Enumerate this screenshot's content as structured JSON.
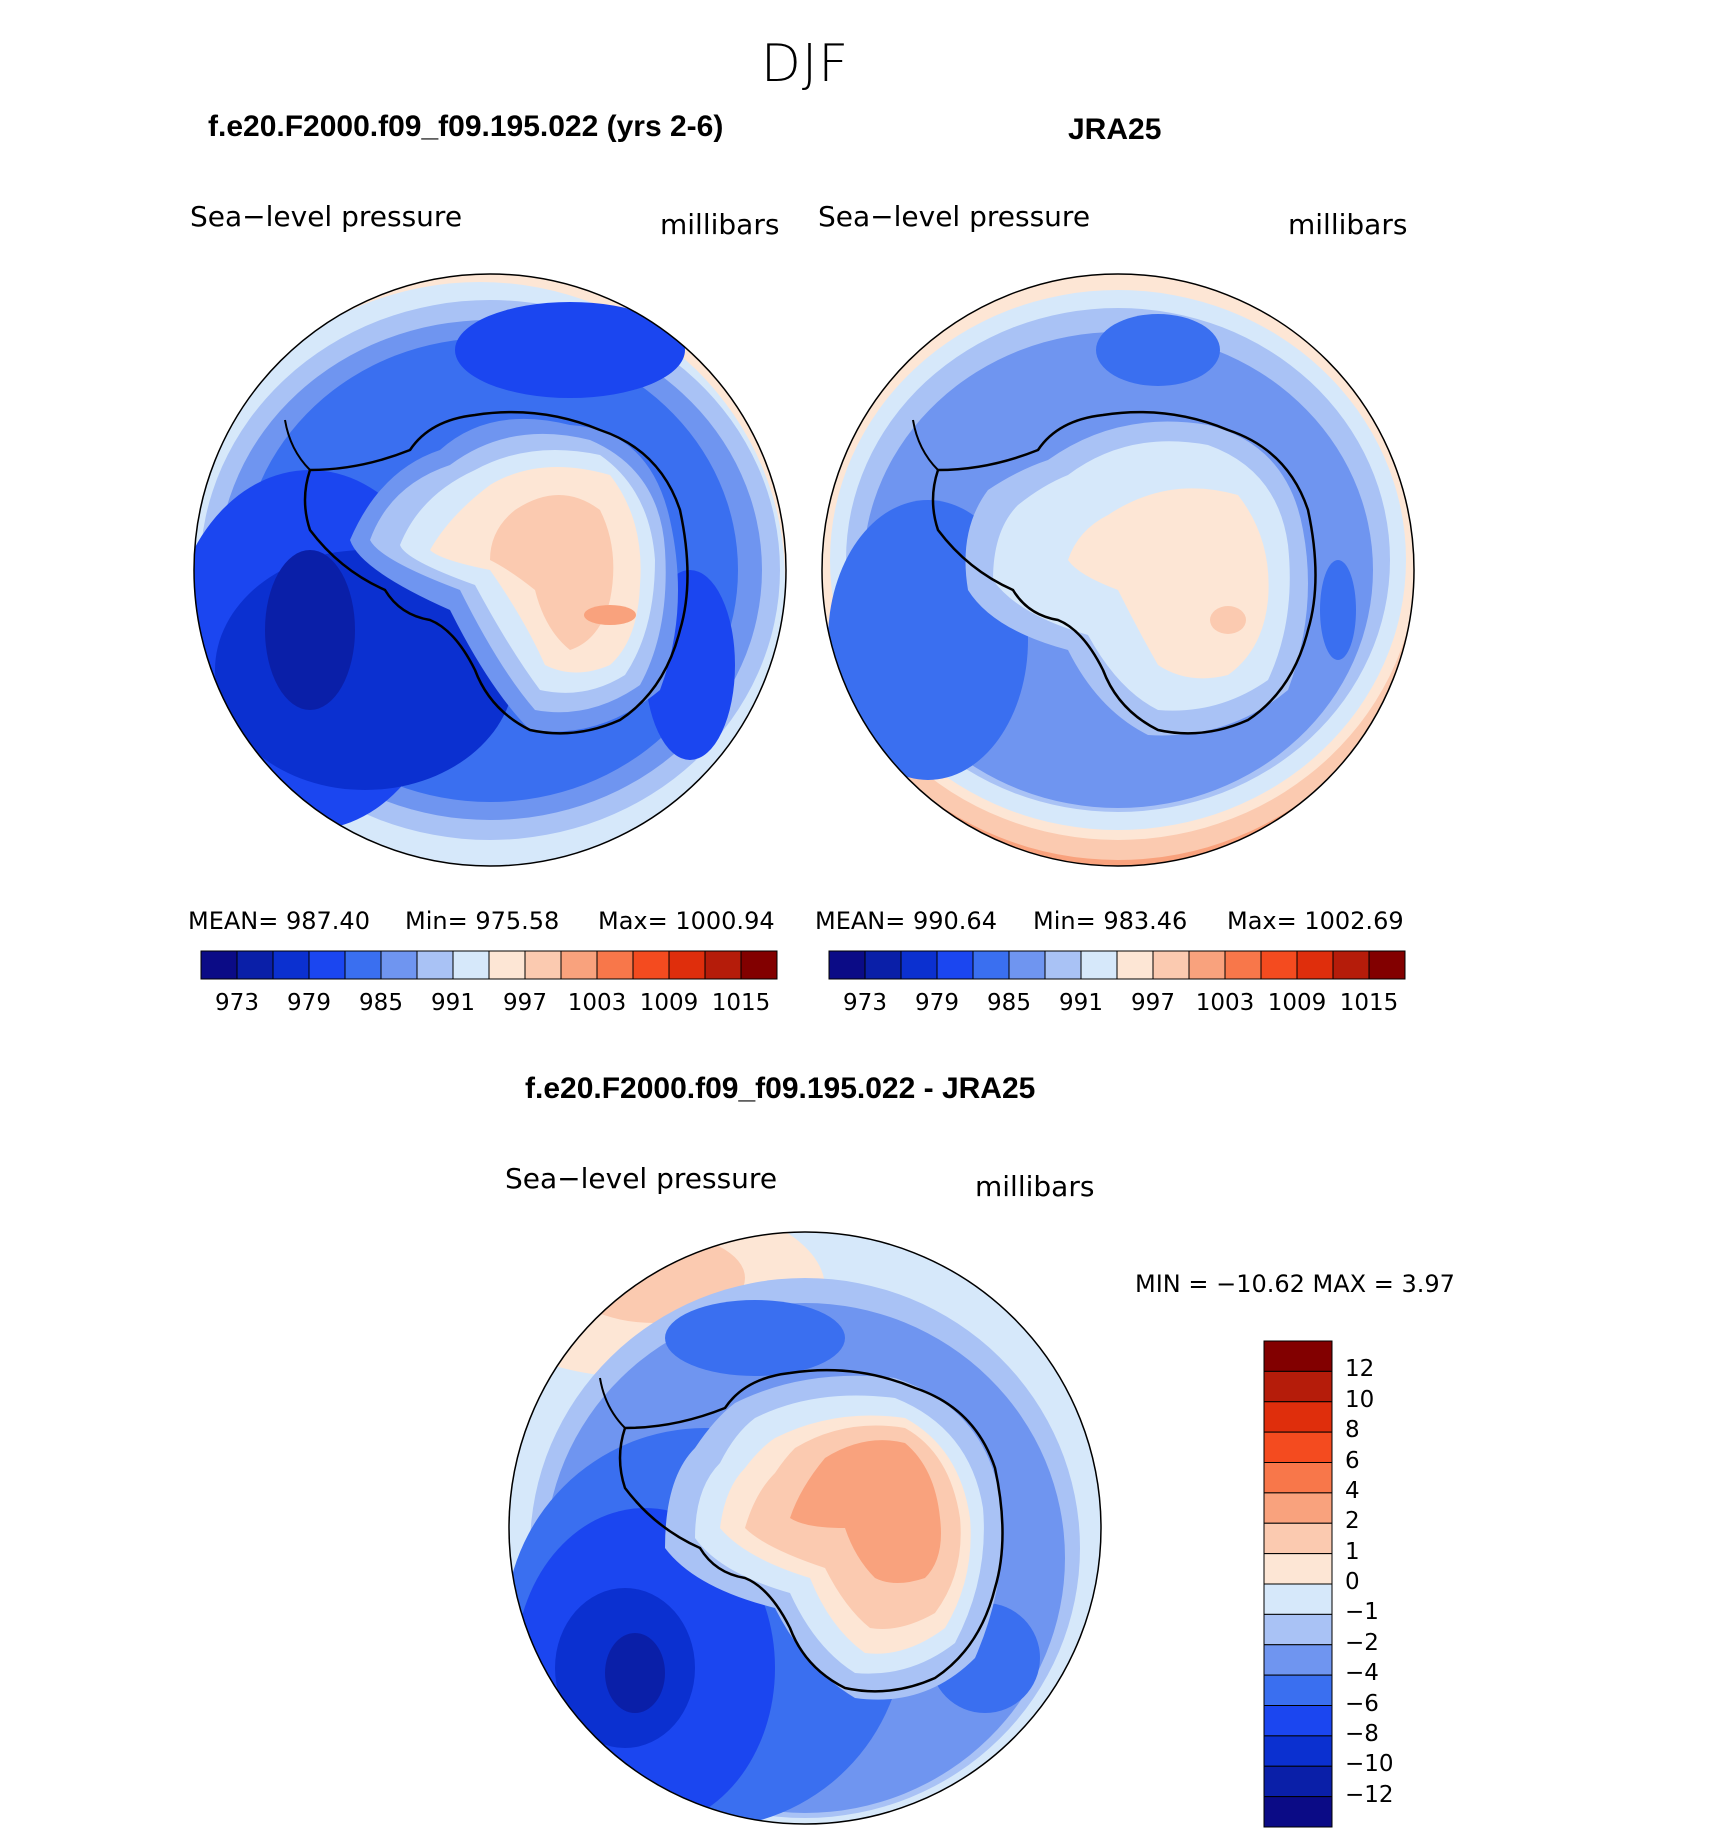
{
  "season": "DJF",
  "palette_main": [
    "#0b0b86",
    "#0a1fa8",
    "#0b30d0",
    "#1b46f0",
    "#3a6ff0",
    "#6f95f0",
    "#a9c2f5",
    "#d6e8fa",
    "#fde6d5",
    "#fbcab0",
    "#f9a27d",
    "#f8774a",
    "#f44b1f",
    "#df2e0c",
    "#b51c0a",
    "#820000"
  ],
  "palette_diff": [
    "#0b0b86",
    "#0a1fa8",
    "#0b30d0",
    "#1b46f0",
    "#3a6ff0",
    "#6f95f0",
    "#a9c2f5",
    "#d6e8fa",
    "#fde6d5",
    "#fbcab0",
    "#f9a27d",
    "#f8774a",
    "#f44b1f",
    "#df2e0c",
    "#b51c0a",
    "#820000"
  ],
  "panels": [
    {
      "title": "f.e20.F2000.f09_f09.195.022 (yrs 2-6)",
      "variable": "Sea−level pressure",
      "units": "millibars",
      "mean": "MEAN=  987.40",
      "min": "Min=  975.58",
      "max": "Max=  1000.94",
      "ticks": [
        "973",
        "979",
        "985",
        "991",
        "997",
        "1003",
        "1009",
        "1015"
      ]
    },
    {
      "title": "JRA25",
      "variable": "Sea−level pressure",
      "units": "millibars",
      "mean": "MEAN=  990.64",
      "min": "Min=  983.46",
      "max": "Max=  1002.69",
      "ticks": [
        "973",
        "979",
        "985",
        "991",
        "997",
        "1003",
        "1009",
        "1015"
      ]
    },
    {
      "title": "f.e20.F2000.f09_f09.195.022 - JRA25",
      "variable": "Sea−level pressure",
      "units": "millibars",
      "minmax": "MIN  =  −10.62  MAX  =     3.97",
      "ticks": [
        "12",
        "10",
        "8",
        "6",
        "4",
        "2",
        "1",
        "0",
        "−1",
        "−2",
        "−4",
        "−6",
        "−8",
        "−10",
        "−12"
      ]
    }
  ]
}
